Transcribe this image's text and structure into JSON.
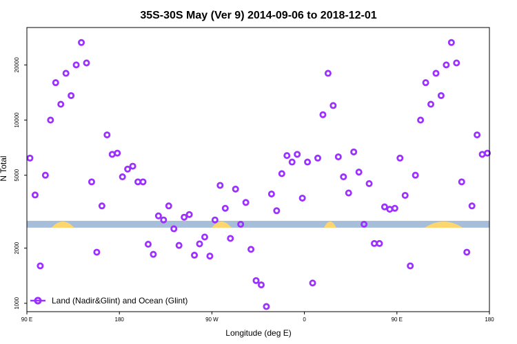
{
  "chart_data": {
    "type": "scatter",
    "title": "35S-30S May (Ver 9)   2014-09-06 to 2018-12-01",
    "xlabel": "Longitude (deg E)",
    "ylabel": "N Total",
    "xlim": [
      90,
      540
    ],
    "ylim_log": [
      900,
      32000
    ],
    "y_scale": "log",
    "x_ticks": [
      {
        "value": 90,
        "label": "90 E"
      },
      {
        "value": 180,
        "label": "180"
      },
      {
        "value": 270,
        "label": "90 W"
      },
      {
        "value": 360,
        "label": "0"
      },
      {
        "value": 450,
        "label": "90 E"
      },
      {
        "value": 540,
        "label": "180"
      }
    ],
    "y_ticks": [
      {
        "value": 1000,
        "label": "1000"
      },
      {
        "value": 2000,
        "label": "2000"
      },
      {
        "value": 5000,
        "label": "5000"
      },
      {
        "value": 10000,
        "label": "10000"
      },
      {
        "value": 20000,
        "label": "20000"
      }
    ],
    "series": [
      {
        "name": "Land (Nadir&Glint) and Ocean (Glint)",
        "color": "#9b30ff",
        "x": [
          93,
          98,
          103,
          108,
          113,
          118,
          123,
          128,
          133,
          138,
          143,
          148,
          153,
          158,
          163,
          168,
          173,
          178,
          183,
          188,
          193,
          198,
          203,
          208,
          213,
          218,
          223,
          228,
          233,
          238,
          243,
          248,
          253,
          258,
          263,
          268,
          273,
          278,
          283,
          288,
          293,
          298,
          303,
          308,
          313,
          318,
          323,
          328,
          333,
          338,
          343,
          348,
          353,
          358,
          363,
          368,
          373,
          378,
          383,
          388,
          393,
          398,
          403,
          408,
          413,
          418,
          423,
          428,
          433,
          438,
          443,
          448,
          453,
          458,
          463,
          468,
          473,
          478,
          483,
          488,
          493,
          498,
          503,
          508,
          513,
          518,
          523,
          528,
          533,
          538
        ],
        "y": [
          6200,
          3900,
          1600,
          5000,
          10000,
          16000,
          12200,
          18000,
          13600,
          20000,
          26500,
          20500,
          4600,
          1900,
          3400,
          8300,
          6500,
          6600,
          4900,
          5400,
          5600,
          4600,
          4600,
          2100,
          1850,
          3000,
          2850,
          3400,
          2550,
          2070,
          2950,
          3050,
          1830,
          2110,
          2300,
          1810,
          2850,
          4400,
          3300,
          2260,
          4200,
          2700,
          3550,
          1970,
          1330,
          1260,
          960,
          3950,
          3200,
          5100,
          6400,
          5900,
          6500,
          3750,
          5900,
          1290,
          6200,
          10700,
          18000,
          12000,
          6300,
          4900,
          4000,
          6700,
          5200,
          2700,
          4500,
          2120,
          2120,
          3360,
          3260,
          3300,
          6200,
          3880,
          1600,
          5000,
          10000,
          16000,
          12200,
          18000,
          13600,
          20000,
          26500,
          20500,
          4600,
          1900,
          3400,
          8300,
          6500,
          6600
        ]
      }
    ],
    "background_band": {
      "y_value": 2700,
      "ocean_color": "#a7bedb",
      "land_color": "#fdd66f",
      "land_segments": [
        [
          114,
          136
        ],
        [
          270,
          289
        ],
        [
          379,
          391
        ],
        [
          477,
          514
        ]
      ]
    },
    "legend": {
      "position": "bottom-left",
      "label": "Land (Nadir&Glint) and Ocean (Glint)"
    }
  }
}
